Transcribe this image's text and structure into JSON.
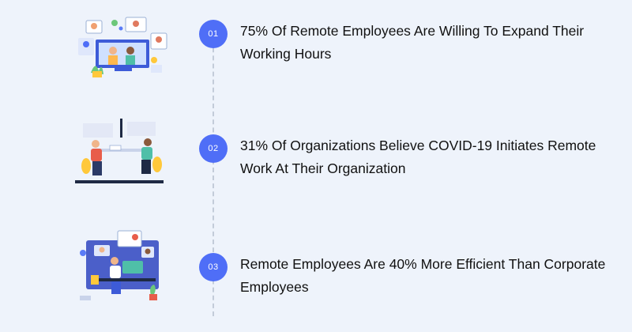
{
  "colors": {
    "background": "#eef3fb",
    "accent": "#4f6ef7",
    "text": "#111111",
    "timeline": "#c3ccd9"
  },
  "items": [
    {
      "number": "01",
      "text": "75% Of Remote Employees Are Willing To Expand Their Working Hours",
      "illustration": "video-conference-illustration"
    },
    {
      "number": "02",
      "text": "31% Of Organizations Believe COVID-19 Initiates Remote Work At Their Organization",
      "illustration": "two-people-meeting-illustration"
    },
    {
      "number": "03",
      "text": "Remote Employees Are 40% More Efficient Than Corporate Employees",
      "illustration": "remote-worker-desk-illustration"
    }
  ]
}
